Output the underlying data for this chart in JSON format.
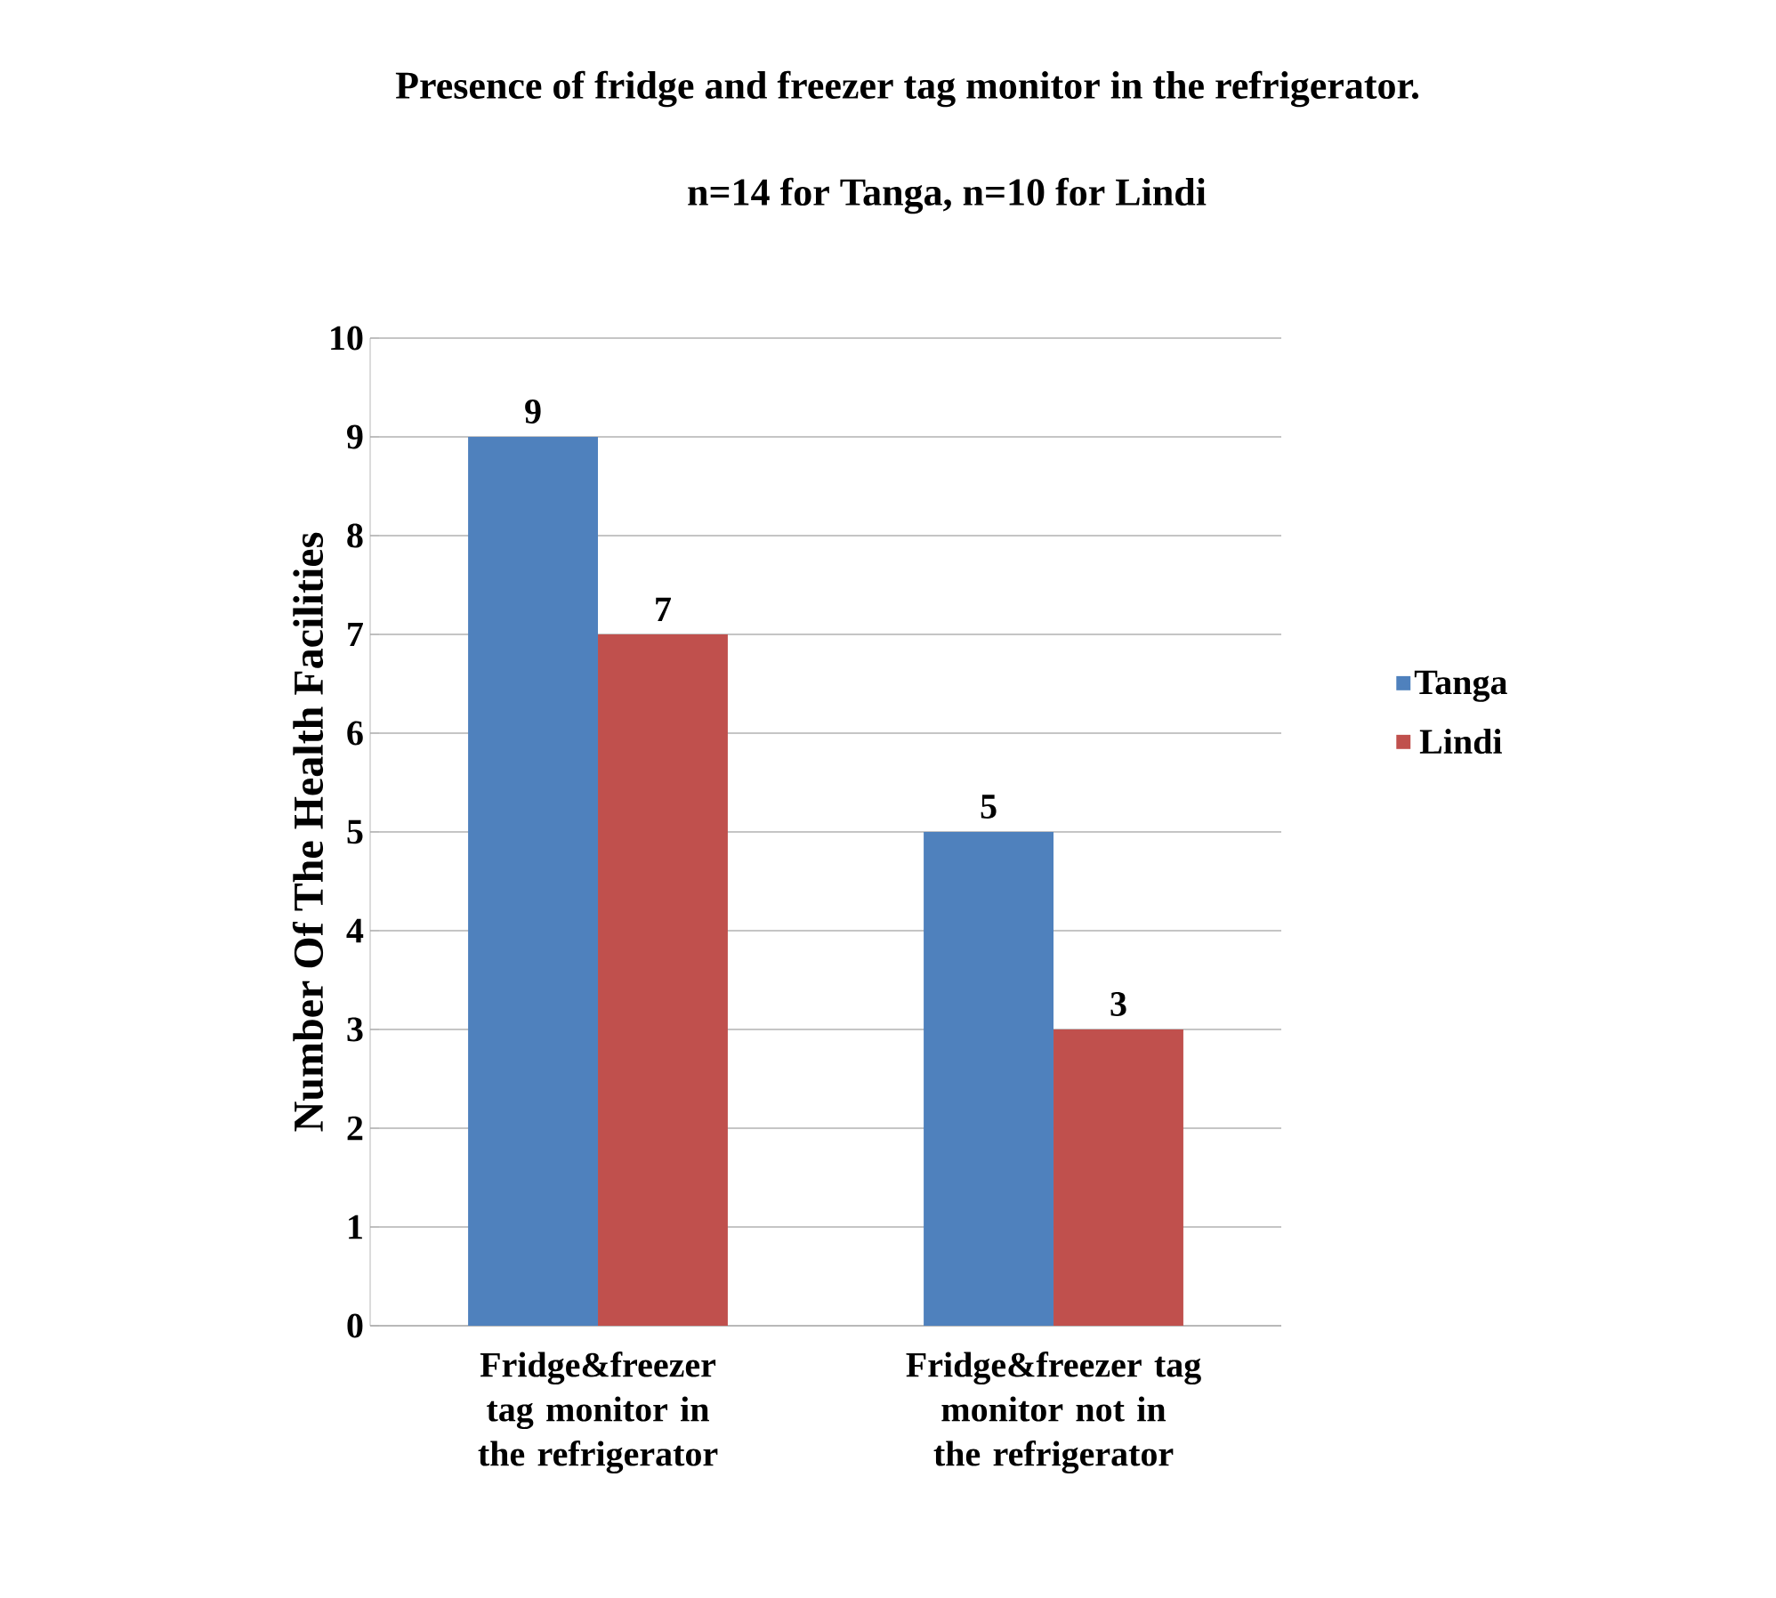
{
  "chart_data": {
    "type": "bar",
    "title": "Presence of fridge and freezer tag monitor in the refrigerator.",
    "subtitle": "n=14 for Tanga, n=10 for Lindi",
    "ylabel": "Number Of The Health Facilities",
    "categories": [
      "Fridge&freezer tag monitor in the refrigerator",
      "Fridge&freezer tag monitor not in the refrigerator"
    ],
    "series": [
      {
        "name": "Tanga",
        "color": "#4f81bd",
        "values": [
          9,
          5
        ]
      },
      {
        "name": "Lindi",
        "color": "#c0504d",
        "values": [
          7,
          3
        ]
      }
    ],
    "ylim": [
      0,
      10
    ],
    "yticks": [
      0,
      1,
      2,
      3,
      4,
      5,
      6,
      7,
      8,
      9,
      10
    ],
    "grid": "y",
    "legend": "right",
    "data_labels": true
  }
}
